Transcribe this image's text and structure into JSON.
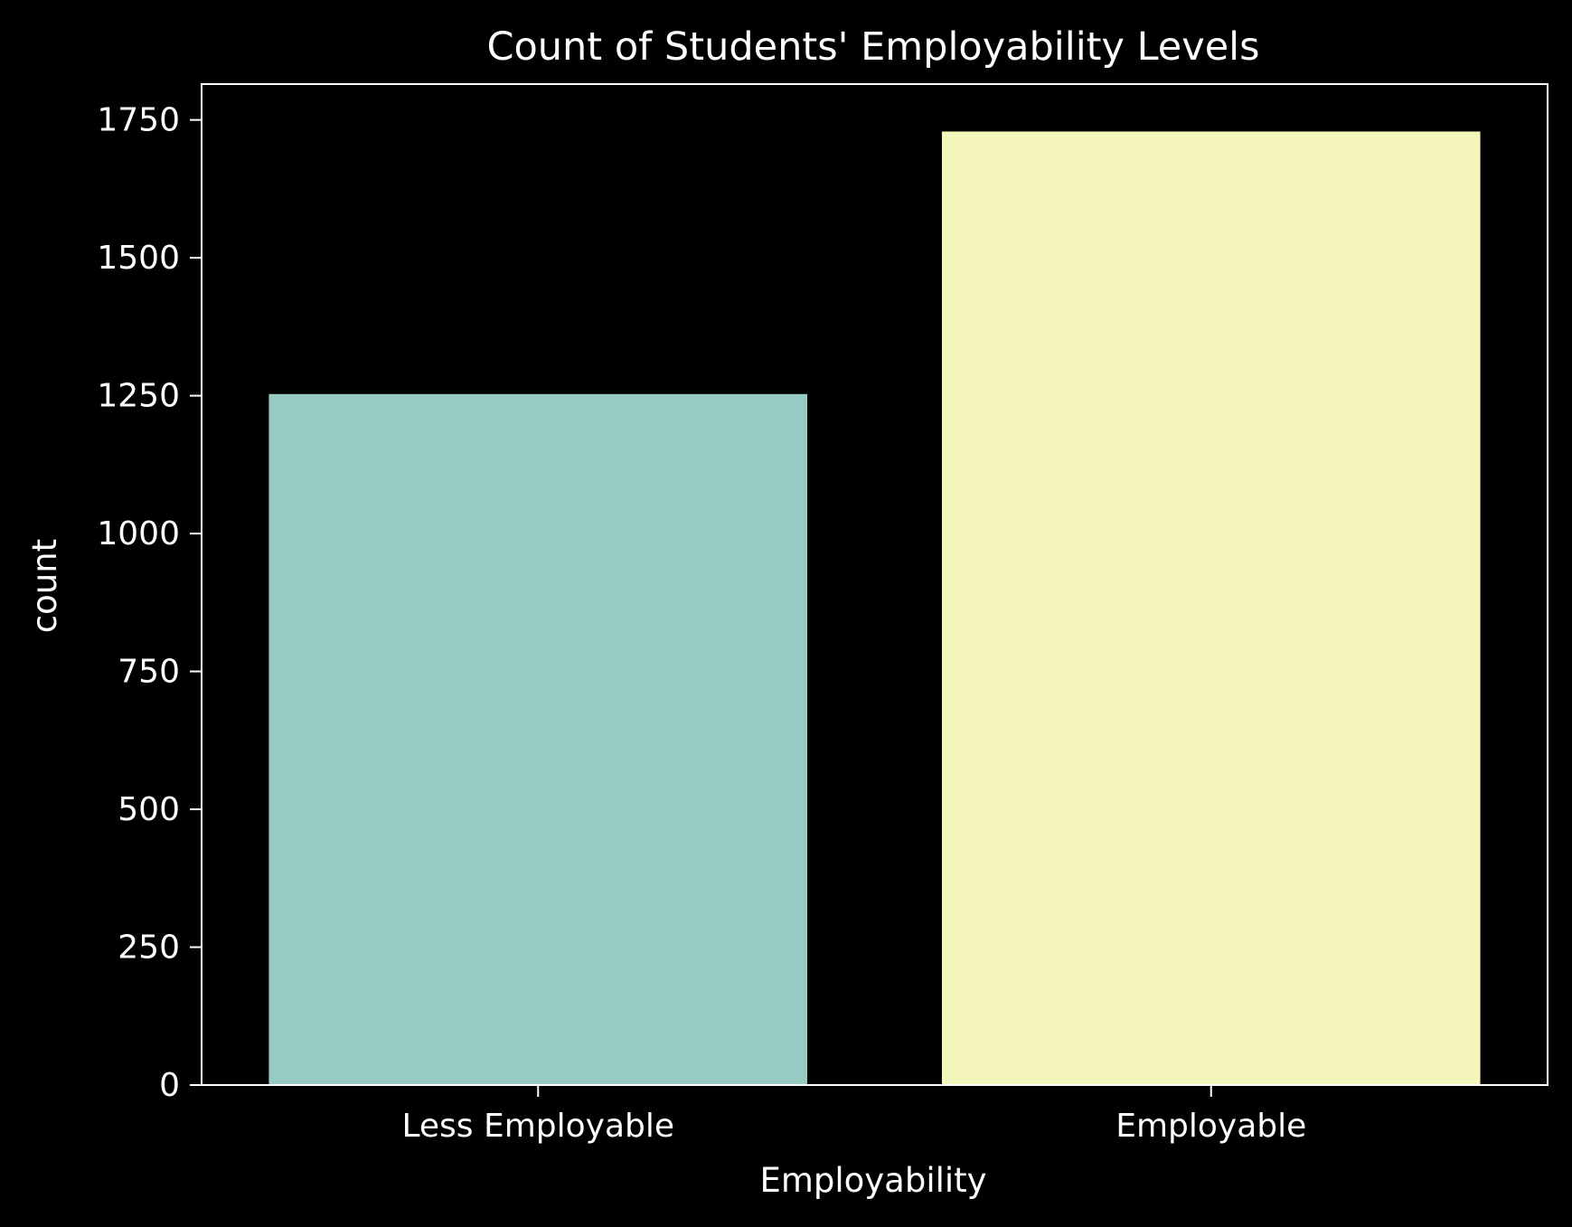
{
  "chart_data": {
    "type": "bar",
    "title": "Count of Students' Employability Levels",
    "xlabel": "Employability",
    "ylabel": "count",
    "categories": [
      "Less Employable",
      "Employable"
    ],
    "values": [
      1253,
      1729
    ],
    "ylim": [
      0,
      1815
    ],
    "yticks": [
      0,
      250,
      500,
      750,
      1000,
      1250,
      1500,
      1750
    ],
    "ytick_labels": [
      "0",
      "250",
      "500",
      "750",
      "1000",
      "1250",
      "1500",
      "1750"
    ],
    "grid": false,
    "legend": "none",
    "colors": {
      "background": "#000000",
      "foreground": "#ffffff",
      "bars": [
        "#97cac2",
        "#f5f6bc"
      ]
    }
  }
}
